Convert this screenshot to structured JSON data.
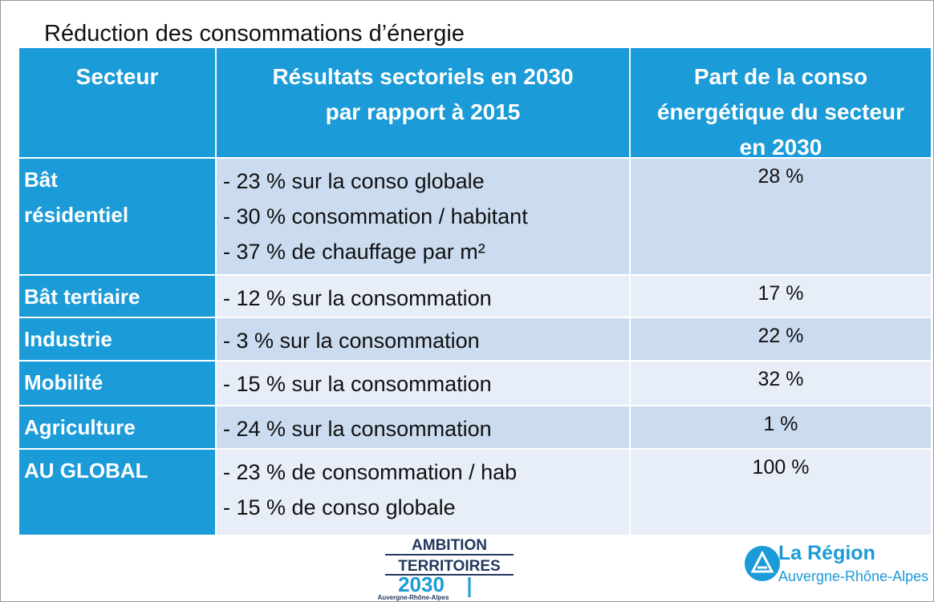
{
  "title": "Réduction des consommations d’énergie",
  "table": {
    "header": [
      [
        "Secteur"
      ],
      [
        "Résultats sectoriels en 2030",
        "par rapport à 2015"
      ],
      [
        "Part de la conso",
        "énergétique du secteur",
        "en 2030"
      ]
    ],
    "rows": [
      [
        [
          "Bât",
          "résidentiel"
        ],
        [
          "- 23 % sur la conso globale",
          "- 30 % consommation / habitant",
          "- 37 % de chauffage par m²"
        ],
        [
          "28 %"
        ]
      ],
      [
        [
          "Bât tertiaire"
        ],
        [
          "- 12 % sur la consommation"
        ],
        [
          "17 %"
        ]
      ],
      [
        [
          "Industrie"
        ],
        [
          "- 3 % sur la consommation"
        ],
        [
          "22 %"
        ]
      ],
      [
        [
          "Mobilité"
        ],
        [
          "- 15 % sur la consommation"
        ],
        [
          "32 %"
        ]
      ],
      [
        [
          "Agriculture"
        ],
        [
          "- 24 % sur la consommation"
        ],
        [
          "1 %"
        ]
      ],
      [
        [
          "AU GLOBAL"
        ],
        [
          "- 23 % de consommation / hab",
          "- 15 % de conso globale"
        ],
        [
          "100 %"
        ]
      ]
    ]
  },
  "logos": {
    "ambition": [
      "AMBITION",
      "TERRITOIRES",
      "2030",
      "Auvergne-Rhône-Alpes"
    ],
    "region": [
      "La Région",
      "Auvergne-Rhône-Alpes"
    ]
  }
}
